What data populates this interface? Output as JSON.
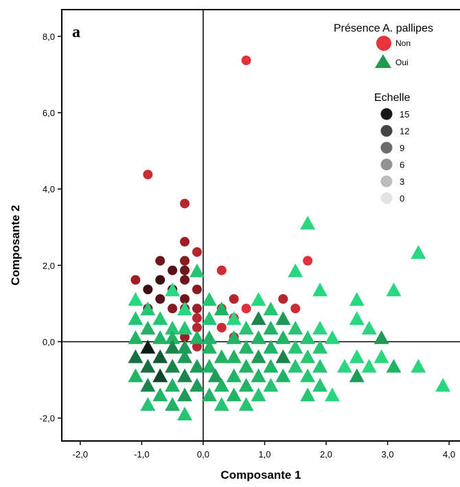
{
  "chart_data": {
    "type": "scatter",
    "panel_label": "a",
    "xlabel": "Composante 1",
    "ylabel": "Composante 2",
    "xlim": [
      -2.3,
      4.2
    ],
    "ylim": [
      -2.6,
      8.7
    ],
    "x_ticks": [
      -2.0,
      -1.0,
      0.0,
      1.0,
      2.0,
      3.0,
      4.0
    ],
    "x_tick_labels": [
      "-2,0",
      "-1,0",
      "0,0",
      "1,0",
      "2,0",
      "3,0",
      "4,0"
    ],
    "y_ticks": [
      -2.0,
      0.0,
      2.0,
      4.0,
      6.0,
      8.0
    ],
    "y_tick_labels": [
      "-2,0",
      "0,0",
      "2,0",
      "4,0",
      "6,0",
      "8,0"
    ],
    "grid": false,
    "reference_lines": {
      "x": 0.0,
      "y": 0.0
    },
    "legend": {
      "position": "top-right",
      "presence_title": "Présence A. pallipes",
      "presence_items": [
        {
          "label": "Non",
          "marker": "circle",
          "color": "#e8323c"
        },
        {
          "label": "Oui",
          "marker": "triangle",
          "color": "#1f9a4e"
        }
      ],
      "scale_title": "Echelle",
      "scale_items": [
        {
          "label": "15",
          "color": "#161616"
        },
        {
          "label": "12",
          "color": "#444444"
        },
        {
          "label": "9",
          "color": "#6b6b6b"
        },
        {
          "label": "6",
          "color": "#939393"
        },
        {
          "label": "3",
          "color": "#bdbdbd"
        },
        {
          "label": "0",
          "color": "#e3e3e3"
        }
      ]
    },
    "series": [
      {
        "name": "Non",
        "marker": "circle",
        "points": [
          [
            0.7,
            7.37,
            0
          ],
          [
            -0.9,
            4.38,
            1
          ],
          [
            -0.3,
            3.62,
            2
          ],
          [
            -0.3,
            2.62,
            3
          ],
          [
            -0.1,
            2.35,
            2
          ],
          [
            -0.3,
            2.12,
            4
          ],
          [
            -0.7,
            2.12,
            5
          ],
          [
            -0.5,
            1.87,
            6
          ],
          [
            -0.3,
            1.87,
            5
          ],
          [
            0.3,
            1.87,
            1
          ],
          [
            1.7,
            2.12,
            0
          ],
          [
            -1.1,
            1.62,
            3
          ],
          [
            -0.7,
            1.62,
            7
          ],
          [
            -0.3,
            1.62,
            5
          ],
          [
            -0.9,
            1.37,
            7
          ],
          [
            -0.5,
            1.37,
            6
          ],
          [
            -0.1,
            1.37,
            4
          ],
          [
            -0.7,
            1.12,
            6
          ],
          [
            -0.3,
            1.12,
            5
          ],
          [
            0.5,
            1.12,
            2
          ],
          [
            1.3,
            1.12,
            2
          ],
          [
            -0.9,
            0.87,
            5
          ],
          [
            -0.5,
            0.87,
            4
          ],
          [
            -0.3,
            0.87,
            4
          ],
          [
            -0.1,
            0.87,
            3
          ],
          [
            0.3,
            0.87,
            1
          ],
          [
            0.7,
            0.87,
            0
          ],
          [
            1.5,
            0.87,
            1
          ],
          [
            -0.1,
            0.62,
            2
          ],
          [
            0.5,
            0.62,
            1
          ],
          [
            -0.1,
            0.37,
            2
          ],
          [
            0.3,
            0.37,
            1
          ],
          [
            -0.3,
            0.12,
            3
          ],
          [
            0.5,
            0.12,
            2
          ],
          [
            -0.1,
            -0.13,
            2
          ]
        ]
      },
      {
        "name": "Oui",
        "marker": "triangle",
        "points": [
          [
            1.7,
            3.12,
            0
          ],
          [
            3.5,
            2.35,
            0
          ],
          [
            1.5,
            1.87,
            0
          ],
          [
            -0.1,
            1.87,
            1
          ],
          [
            -0.5,
            1.37,
            0
          ],
          [
            1.9,
            1.37,
            0
          ],
          [
            3.1,
            1.37,
            0
          ],
          [
            -1.1,
            1.12,
            0
          ],
          [
            0.1,
            1.12,
            1
          ],
          [
            0.9,
            1.12,
            0
          ],
          [
            2.5,
            1.12,
            0
          ],
          [
            -0.9,
            0.87,
            1
          ],
          [
            0.3,
            0.87,
            2
          ],
          [
            1.1,
            0.87,
            1
          ],
          [
            -0.3,
            0.87,
            0
          ],
          [
            0.9,
            0.62,
            4
          ],
          [
            1.3,
            0.62,
            3
          ],
          [
            -1.1,
            0.62,
            1
          ],
          [
            -0.7,
            0.62,
            1
          ],
          [
            0.1,
            0.62,
            1
          ],
          [
            0.5,
            0.62,
            0
          ],
          [
            2.5,
            0.62,
            0
          ],
          [
            -0.9,
            0.37,
            2
          ],
          [
            -0.5,
            0.37,
            1
          ],
          [
            -0.3,
            0.37,
            1
          ],
          [
            0.7,
            0.37,
            1
          ],
          [
            1.1,
            0.37,
            2
          ],
          [
            1.5,
            0.37,
            1
          ],
          [
            1.9,
            0.37,
            0
          ],
          [
            2.7,
            0.37,
            0
          ],
          [
            -1.1,
            0.12,
            2
          ],
          [
            -0.7,
            0.12,
            2
          ],
          [
            -0.5,
            0.12,
            2
          ],
          [
            -0.1,
            0.12,
            2
          ],
          [
            0.1,
            0.12,
            2
          ],
          [
            0.5,
            0.12,
            2
          ],
          [
            0.9,
            0.12,
            2
          ],
          [
            1.3,
            0.12,
            2
          ],
          [
            1.7,
            0.12,
            1
          ],
          [
            2.1,
            0.12,
            0
          ],
          [
            2.9,
            0.12,
            3
          ],
          [
            -0.9,
            -0.13,
            9
          ],
          [
            -0.5,
            -0.13,
            4
          ],
          [
            -0.3,
            -0.13,
            3
          ],
          [
            0.1,
            -0.13,
            2
          ],
          [
            0.7,
            -0.13,
            2
          ],
          [
            1.1,
            -0.13,
            2
          ],
          [
            1.5,
            -0.13,
            1
          ],
          [
            1.9,
            -0.13,
            1
          ],
          [
            -1.1,
            -0.38,
            5
          ],
          [
            -0.7,
            -0.38,
            6
          ],
          [
            -0.3,
            -0.38,
            3
          ],
          [
            0.3,
            -0.38,
            2
          ],
          [
            0.5,
            -0.38,
            2
          ],
          [
            0.9,
            -0.38,
            3
          ],
          [
            1.3,
            -0.38,
            4
          ],
          [
            1.7,
            -0.38,
            1
          ],
          [
            2.5,
            -0.38,
            0
          ],
          [
            2.9,
            -0.38,
            0
          ],
          [
            -0.9,
            -0.63,
            5
          ],
          [
            -0.5,
            -0.63,
            4
          ],
          [
            -0.1,
            -0.63,
            3
          ],
          [
            0.1,
            -0.63,
            2
          ],
          [
            0.7,
            -0.63,
            2
          ],
          [
            1.1,
            -0.63,
            2
          ],
          [
            1.5,
            -0.63,
            1
          ],
          [
            1.9,
            -0.63,
            1
          ],
          [
            2.3,
            -0.63,
            0
          ],
          [
            2.7,
            -0.63,
            0
          ],
          [
            3.1,
            -0.63,
            2
          ],
          [
            3.5,
            -0.63,
            0
          ],
          [
            -1.1,
            -0.88,
            2
          ],
          [
            -0.7,
            -0.88,
            7
          ],
          [
            -0.3,
            -0.88,
            4
          ],
          [
            0.2,
            -0.88,
            3
          ],
          [
            0.5,
            -0.88,
            2
          ],
          [
            0.9,
            -0.88,
            2
          ],
          [
            1.3,
            -0.88,
            2
          ],
          [
            1.7,
            -0.88,
            1
          ],
          [
            2.5,
            -0.88,
            3
          ],
          [
            -0.9,
            -1.13,
            4
          ],
          [
            -0.5,
            -1.13,
            2
          ],
          [
            -0.1,
            -1.13,
            3
          ],
          [
            0.3,
            -1.13,
            2
          ],
          [
            0.7,
            -1.13,
            2
          ],
          [
            1.1,
            -1.13,
            1
          ],
          [
            1.9,
            -1.13,
            1
          ],
          [
            3.9,
            -1.13,
            0
          ],
          [
            -0.7,
            -1.38,
            2
          ],
          [
            -0.3,
            -1.38,
            3
          ],
          [
            0.1,
            -1.38,
            2
          ],
          [
            0.5,
            -1.38,
            2
          ],
          [
            0.9,
            -1.38,
            1
          ],
          [
            1.7,
            -1.38,
            1
          ],
          [
            2.1,
            -1.38,
            0
          ],
          [
            -0.9,
            -1.63,
            1
          ],
          [
            -0.5,
            -1.63,
            2
          ],
          [
            0.3,
            -1.63,
            1
          ],
          [
            0.7,
            -1.63,
            1
          ],
          [
            -0.3,
            -1.88,
            1
          ]
        ]
      }
    ]
  },
  "palette": {
    "non": [
      "#e0313c",
      "#cc2c35",
      "#b5262f",
      "#9d2029",
      "#861b22",
      "#6e161c",
      "#57111a",
      "#3f0c12"
    ],
    "oui": [
      "#2ad680",
      "#27c573",
      "#23b366",
      "#1f9a58",
      "#1b854c",
      "#186f41",
      "#145a35",
      "#104629",
      "#0c321e",
      "#081e12"
    ]
  }
}
